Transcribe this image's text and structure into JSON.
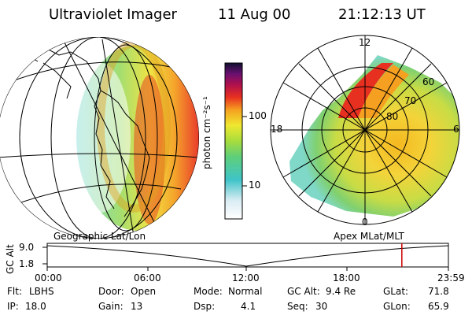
{
  "header": {
    "instrument": "Ultraviolet Imager",
    "date": "11 Aug 00",
    "time": "21:12:13 UT"
  },
  "colorbar": {
    "label": "photon cm⁻²s⁻¹",
    "ticks": [
      "100",
      "10"
    ]
  },
  "polar_plot": {
    "mlt_labels": {
      "top": "12",
      "right": "6",
      "bottom": "0",
      "left": "18"
    },
    "lat_labels": [
      "60",
      "70",
      "80"
    ]
  },
  "panels": {
    "left_caption": "Geographic Lat/Lon",
    "right_caption": "Apex MLat/MLT"
  },
  "altitude_plot": {
    "ylabel": "GC Alt",
    "yticks": [
      "9.0",
      "1.8"
    ],
    "xticks": [
      "00:00",
      "06:00",
      "12:00",
      "18:00",
      "23:59"
    ],
    "cursor_color": "#cc0000",
    "cursor_time": "21:12"
  },
  "status": {
    "row1": [
      {
        "key": "Flt:",
        "value": "LBHS"
      },
      {
        "key": "Door:",
        "value": "Open"
      },
      {
        "key": "Mode:",
        "value": "Normal"
      },
      {
        "key": "GC Alt:",
        "value": "9.4 Re"
      },
      {
        "key": "GLat:",
        "value": "71.8"
      }
    ],
    "row2": [
      {
        "key": "IP:",
        "value": "18.0"
      },
      {
        "key": "Gain:",
        "value": "13"
      },
      {
        "key": "Dsp:",
        "value": "4.1"
      },
      {
        "key": "Seq:",
        "value": "30"
      },
      {
        "key": "GLon:",
        "value": "65.9"
      }
    ]
  }
}
